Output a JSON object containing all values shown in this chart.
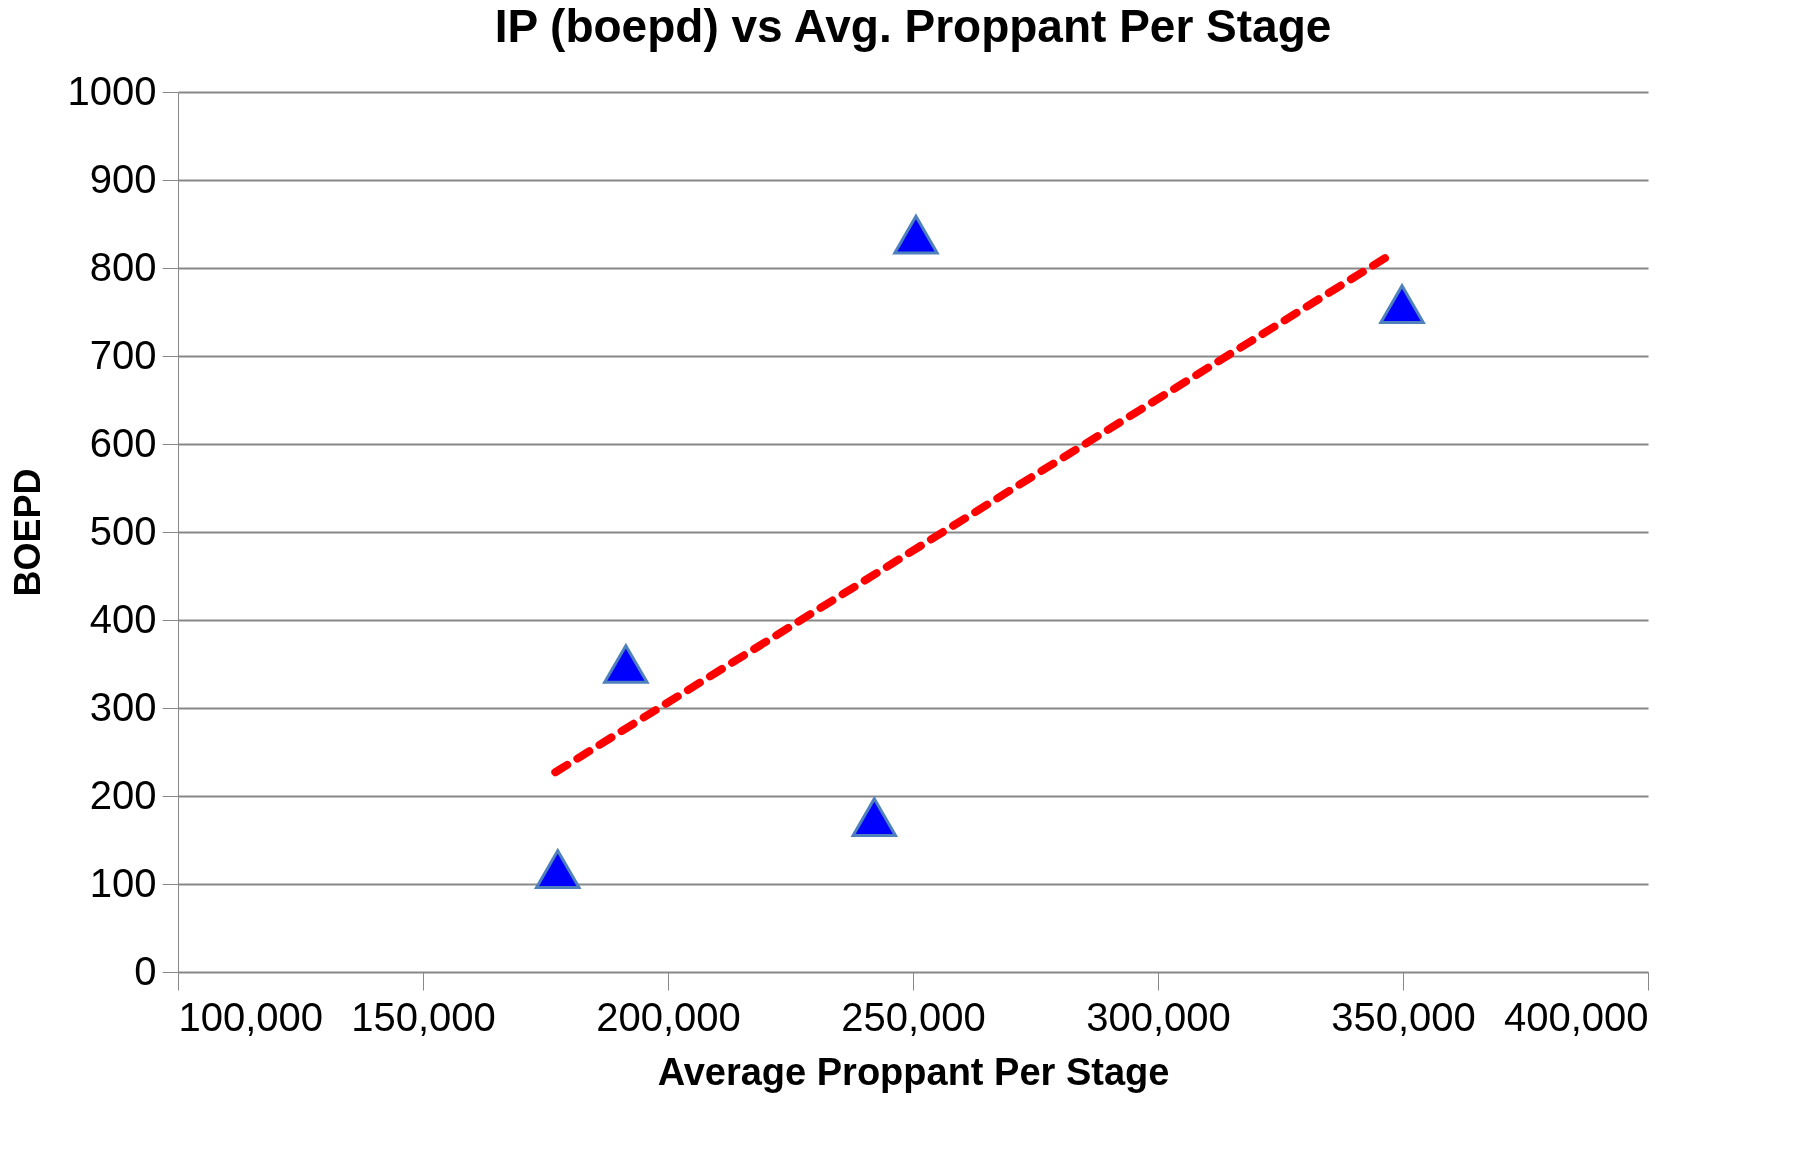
{
  "chart_data": {
    "type": "scatter",
    "title": "IP (boepd) vs Avg. Proppant Per Stage",
    "xlabel": "Average Proppant Per Stage",
    "ylabel": "BOEPD",
    "series": [
      {
        "color": "#0000ff",
        "marker": "triangle",
        "x": [
          177500,
          191400,
          242100,
          250600,
          349800
        ],
        "values": [
          117,
          350,
          176,
          838,
          759
        ]
      },
      {
        "type": "line",
        "color": "#ff0000",
        "line_style": "dashed",
        "marker": "none",
        "x": [
          177000,
          348000
        ],
        "values": [
          227,
          817
        ]
      }
    ],
    "xlim": [
      100000,
      400000
    ],
    "xticks": [
      {
        "value": 100000,
        "label": "100,000"
      },
      {
        "value": 150000,
        "label": "150,000"
      },
      {
        "value": 200000,
        "label": "200,000"
      },
      {
        "value": 250000,
        "label": "250,000"
      },
      {
        "value": 300000,
        "label": "300,000"
      },
      {
        "value": 350000,
        "label": "350,000"
      },
      {
        "value": 400000,
        "label": "400,000"
      }
    ],
    "ylim": [
      0,
      1000
    ],
    "yticks": [
      0,
      100,
      200,
      300,
      400,
      500,
      600,
      700,
      800,
      900,
      1000
    ],
    "grid": "y"
  }
}
